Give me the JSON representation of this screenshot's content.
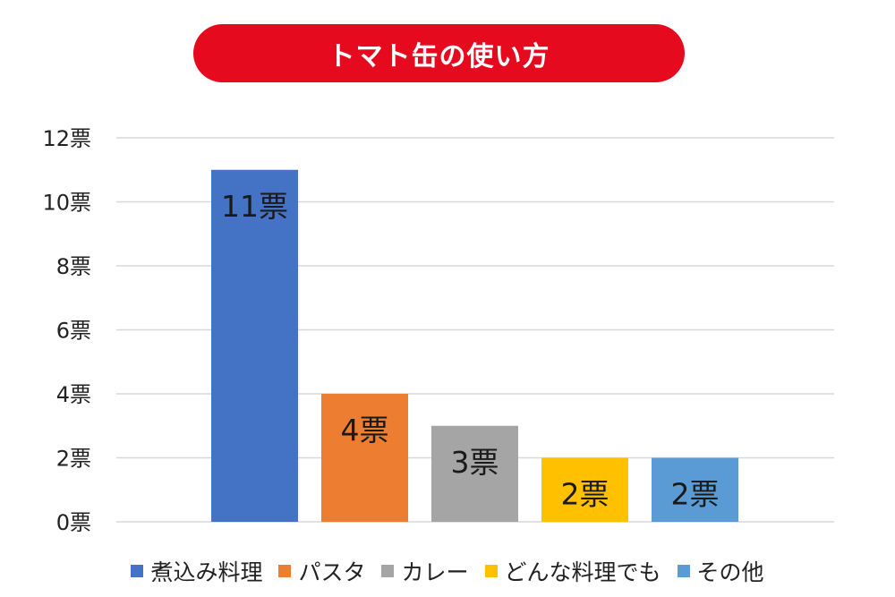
{
  "chart_data": {
    "type": "bar",
    "title": "トマト缶の使い方",
    "categories": [
      "煮込み料理",
      "パスタ",
      "カレー",
      "どんな料理でも",
      "その他"
    ],
    "values": [
      11,
      4,
      3,
      2,
      2
    ],
    "data_labels": [
      "11票",
      "4票",
      "3票",
      "2票",
      "2票"
    ],
    "colors": [
      "#4472C4",
      "#ED7D31",
      "#A5A5A5",
      "#FFC000",
      "#5B9BD5"
    ],
    "ylim": [
      0,
      12
    ],
    "yticks": [
      0,
      2,
      4,
      6,
      8,
      10,
      12
    ],
    "ytick_labels": [
      "0票",
      "2票",
      "4票",
      "6票",
      "8票",
      "10票",
      "12票"
    ],
    "grid": true,
    "legend_position": "bottom"
  },
  "colors": {
    "title_background": "#E60A1E",
    "title_text": "#FFFFFF",
    "gridline": "#D9D9D9"
  }
}
